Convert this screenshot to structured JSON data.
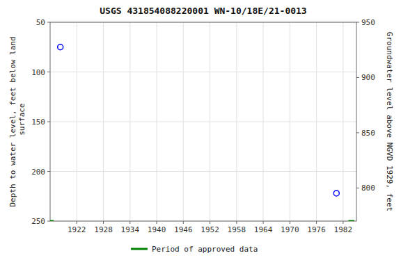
{
  "chart_data": {
    "type": "scatter",
    "title": "USGS 431854088220001 WN-10/18E/21-0013",
    "y_label": "Depth to water level, feet below land\n surface",
    "y2_label": "Groundwater level above NGVD 1929, feet",
    "xlim": [
      1916,
      1985
    ],
    "xticks": [
      1922,
      1928,
      1934,
      1940,
      1946,
      1952,
      1958,
      1964,
      1970,
      1976,
      1982
    ],
    "ylim": [
      250,
      50
    ],
    "yticks": [
      50,
      100,
      150,
      200,
      250
    ],
    "y2lim": [
      770,
      950
    ],
    "y2ticks": [
      950,
      900,
      850,
      800
    ],
    "grid": true,
    "legend": "bottom",
    "series": [
      {
        "type": "scatter",
        "color": "#0000ff",
        "marker": "circle",
        "x": [
          1918.3,
          1980.5
        ],
        "values": [
          75,
          222
        ]
      },
      {
        "type": "line",
        "name": "Period of approved data",
        "color": "#008000",
        "line_style": "solid",
        "x": [
          1916.0,
          1916.8,
          null,
          1983.2,
          1984.5
        ],
        "values": [
          250,
          250,
          null,
          250,
          250
        ]
      }
    ]
  }
}
